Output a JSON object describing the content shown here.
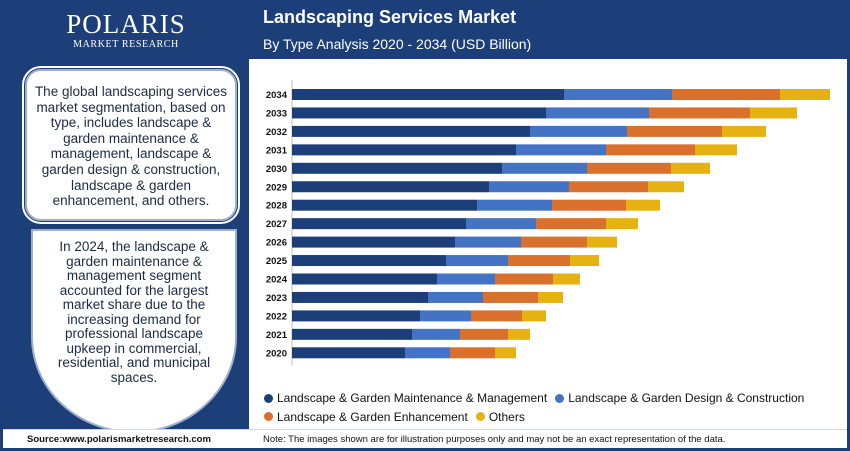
{
  "brand": {
    "logo_main": "POLARIS",
    "logo_sub": "MARKET RESEARCH"
  },
  "header": {
    "title": "Landscaping Services Market",
    "subtitle": "By Type Analysis 2020 - 2034 (USD Billion)"
  },
  "panel": {
    "text1": "The global landscaping services market segmentation, based on type, includes landscape & garden maintenance & management, landscape & garden design & construction, landscape & garden enhancement, and others.",
    "text2": "In 2024, the landscape & garden maintenance & management segment accounted for the largest market share due to the increasing demand for professional landscape upkeep in commercial, residential, and municipal spaces."
  },
  "footer": {
    "source": "Source:www.polarismarketresearch.com",
    "note": "Note: The images shown are for illustration purposes only and may not be an exact representation of the data."
  },
  "colors": {
    "maintenance": "#1c3f7a",
    "design": "#4472c4",
    "enhancement": "#d9702c",
    "others": "#e6b212"
  },
  "chart_data": {
    "type": "bar",
    "orientation": "horizontal",
    "stacked": true,
    "categories": [
      "2034",
      "2033",
      "2032",
      "2031",
      "2030",
      "2029",
      "2028",
      "2027",
      "2026",
      "2025",
      "2024",
      "2023",
      "2022",
      "2021",
      "2020"
    ],
    "series": [
      {
        "name": "Landscape & Garden Maintenance & Management",
        "color": "#1c3f7a",
        "values": [
          272,
          254,
          238,
          224,
          210,
          197,
          185,
          174,
          163,
          154,
          145,
          136,
          128,
          120,
          113
        ]
      },
      {
        "name": "Landscape & Garden Design & Construction",
        "color": "#4472c4",
        "values": [
          108,
          103,
          97,
          90,
          85,
          80,
          75,
          70,
          66,
          62,
          58,
          55,
          51,
          48,
          45
        ]
      },
      {
        "name": "Landscape & Garden Enhancement",
        "color": "#d9702c",
        "values": [
          108,
          101,
          95,
          89,
          84,
          79,
          74,
          70,
          66,
          62,
          58,
          55,
          51,
          48,
          45
        ]
      },
      {
        "name": "Others",
        "color": "#e6b212",
        "values": [
          50,
          47,
          44,
          42,
          39,
          36,
          34,
          32,
          30,
          29,
          27,
          25,
          24,
          22,
          21
        ]
      }
    ],
    "xlim": [
      0,
      540
    ],
    "grid": false,
    "legend_position": "bottom"
  }
}
